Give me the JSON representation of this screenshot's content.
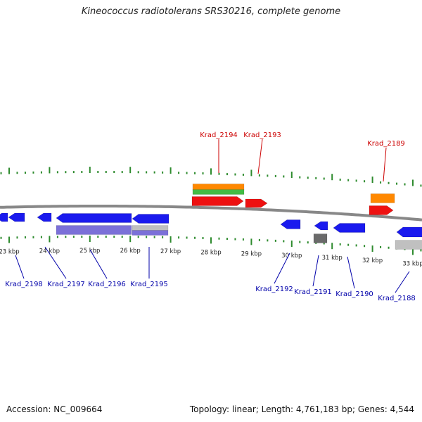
{
  "title": "Kineococcus radiotolerans SRS30216, complete genome",
  "footer": {
    "accession": "Accession: NC_009664",
    "summary": "Topology: linear; Length: 4,761,183 bp; Genes: 4,544"
  },
  "colors": {
    "axis": "#888888",
    "tick": "#2e8b2e",
    "plus_label": "#cc0000",
    "minus_label": "#0000aa",
    "gene_minus": "#1a1aee",
    "gene_plus": "#ee1111",
    "rna_orange": "#ff8800",
    "rna_green": "#44bb44",
    "cds_purple": "#7b70d8",
    "pseudo_gray": "#c0c0c0",
    "dark_gray": "#6a6a6a"
  },
  "scale_labels": [
    "23 kbp",
    "24 kbp",
    "25 kbp",
    "26 kbp",
    "27 kbp",
    "28 kbp",
    "29 kbp",
    "30 kbp",
    "31 kbp",
    "32 kbp",
    "33 kbp"
  ],
  "gene_labels": {
    "plus": [
      "Krad_2194",
      "Krad_2193",
      "Krad_2189"
    ],
    "minus": [
      "Krad_2198",
      "Krad_2197",
      "Krad_2196",
      "Krad_2195",
      "Krad_2192",
      "Krad_2191",
      "Krad_2190",
      "Krad_2188"
    ]
  }
}
